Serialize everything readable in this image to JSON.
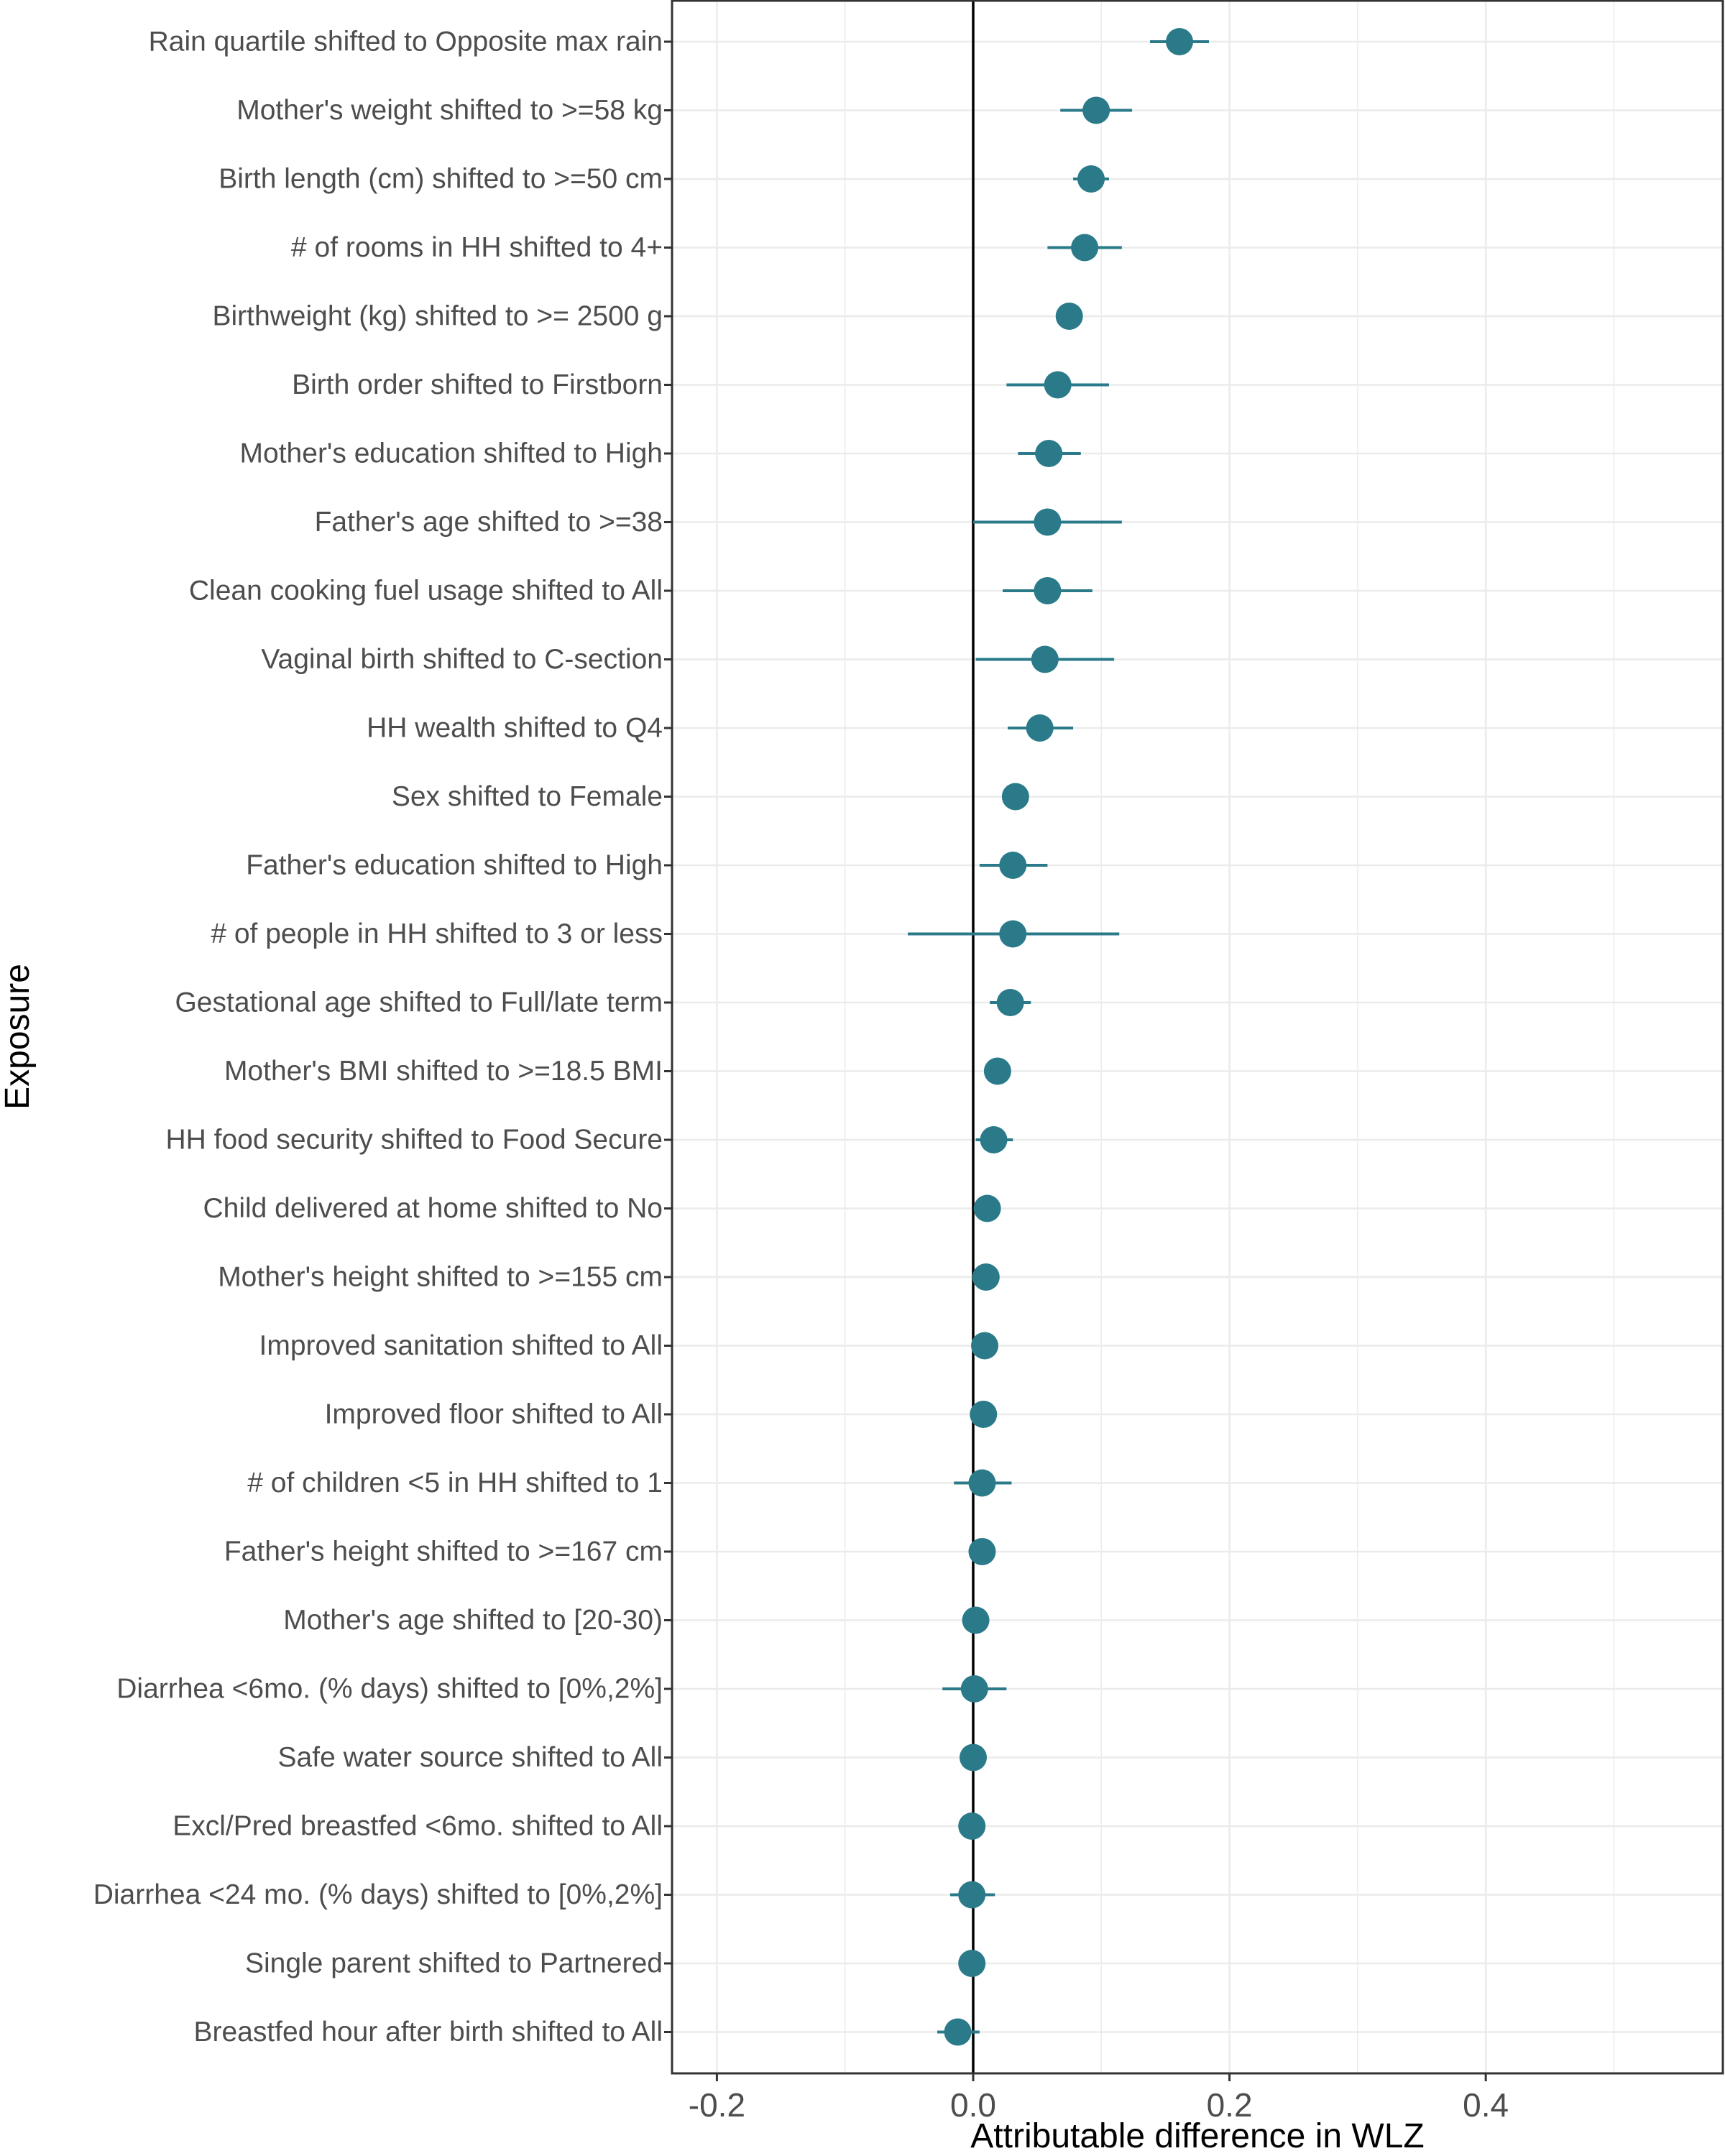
{
  "chart_data": {
    "type": "scatter",
    "subtype": "forest-plot",
    "title": "",
    "xlabel": "Attributable difference in WLZ",
    "ylabel": "Exposure",
    "xlim": [
      -0.235,
      0.585
    ],
    "x_ticks": [
      -0.2,
      0.0,
      0.2,
      0.4
    ],
    "x_tick_labels": [
      "-0.2",
      "0.0",
      "0.2",
      "0.4"
    ],
    "reference_line_x": 0,
    "grid": true,
    "colors": {
      "point": "#2a7a8a",
      "grid": "#ebebeb",
      "panel_border": "#333333",
      "reference_line": "#000000"
    },
    "rows": [
      {
        "label": "Rain quartile shifted to Opposite max rain",
        "est": 0.161,
        "lower": 0.138,
        "upper": 0.184
      },
      {
        "label": "Mother's weight shifted to >=58 kg",
        "est": 0.096,
        "lower": 0.068,
        "upper": 0.124
      },
      {
        "label": "Birth length (cm) shifted to >=50 cm",
        "est": 0.092,
        "lower": 0.078,
        "upper": 0.106
      },
      {
        "label": "# of rooms in HH shifted to 4+",
        "est": 0.087,
        "lower": 0.058,
        "upper": 0.116
      },
      {
        "label": "Birthweight (kg) shifted to >= 2500 g",
        "est": 0.075,
        "lower": 0.067,
        "upper": 0.083
      },
      {
        "label": "Birth order shifted to Firstborn",
        "est": 0.066,
        "lower": 0.026,
        "upper": 0.106
      },
      {
        "label": "Mother's education shifted to High",
        "est": 0.059,
        "lower": 0.035,
        "upper": 0.084
      },
      {
        "label": "Father's age shifted to >=38",
        "est": 0.058,
        "lower": 0.0,
        "upper": 0.116
      },
      {
        "label": "Clean cooking fuel usage shifted to All",
        "est": 0.058,
        "lower": 0.023,
        "upper": 0.093
      },
      {
        "label": "Vaginal birth shifted to C-section",
        "est": 0.056,
        "lower": 0.002,
        "upper": 0.11
      },
      {
        "label": "HH wealth shifted to Q4",
        "est": 0.052,
        "lower": 0.027,
        "upper": 0.078
      },
      {
        "label": "Sex shifted to Female",
        "est": 0.033,
        "lower": 0.025,
        "upper": 0.041
      },
      {
        "label": "Father's education shifted to High",
        "est": 0.031,
        "lower": 0.005,
        "upper": 0.058
      },
      {
        "label": "# of people in HH shifted to 3 or less",
        "est": 0.031,
        "lower": -0.051,
        "upper": 0.114
      },
      {
        "label": "Gestational age shifted to Full/late term",
        "est": 0.029,
        "lower": 0.013,
        "upper": 0.045
      },
      {
        "label": "Mother's BMI shifted to >=18.5 BMI",
        "est": 0.019,
        "lower": 0.012,
        "upper": 0.026
      },
      {
        "label": "HH food security shifted to Food Secure",
        "est": 0.016,
        "lower": 0.002,
        "upper": 0.031
      },
      {
        "label": "Child delivered at home shifted to No",
        "est": 0.011,
        "lower": 0.005,
        "upper": 0.017
      },
      {
        "label": "Mother's height shifted to >=155 cm",
        "est": 0.01,
        "lower": 0.004,
        "upper": 0.016
      },
      {
        "label": "Improved sanitation shifted to All",
        "est": 0.009,
        "lower": 0.003,
        "upper": 0.015
      },
      {
        "label": "Improved floor shifted to All",
        "est": 0.008,
        "lower": 0.002,
        "upper": 0.014
      },
      {
        "label": "# of children <5 in HH shifted to 1",
        "est": 0.007,
        "lower": -0.015,
        "upper": 0.03
      },
      {
        "label": "Father's height shifted to >=167 cm",
        "est": 0.007,
        "lower": 0.001,
        "upper": 0.013
      },
      {
        "label": "Mother's age shifted to [20-30)",
        "est": 0.002,
        "lower": -0.004,
        "upper": 0.008
      },
      {
        "label": "Diarrhea <6mo. (% days) shifted to [0%,2%]",
        "est": 0.001,
        "lower": -0.024,
        "upper": 0.026
      },
      {
        "label": "Safe water source shifted to All",
        "est": 0.0,
        "lower": -0.006,
        "upper": 0.006
      },
      {
        "label": "Excl/Pred breastfed <6mo. shifted to All",
        "est": -0.001,
        "lower": -0.007,
        "upper": 0.005
      },
      {
        "label": "Diarrhea <24 mo.  (% days) shifted to [0%,2%]",
        "est": -0.001,
        "lower": -0.018,
        "upper": 0.017
      },
      {
        "label": "Single parent shifted to Partnered",
        "est": -0.001,
        "lower": -0.007,
        "upper": 0.005
      },
      {
        "label": "Breastfed hour after birth shifted to All",
        "est": -0.012,
        "lower": -0.028,
        "upper": 0.005
      }
    ]
  }
}
